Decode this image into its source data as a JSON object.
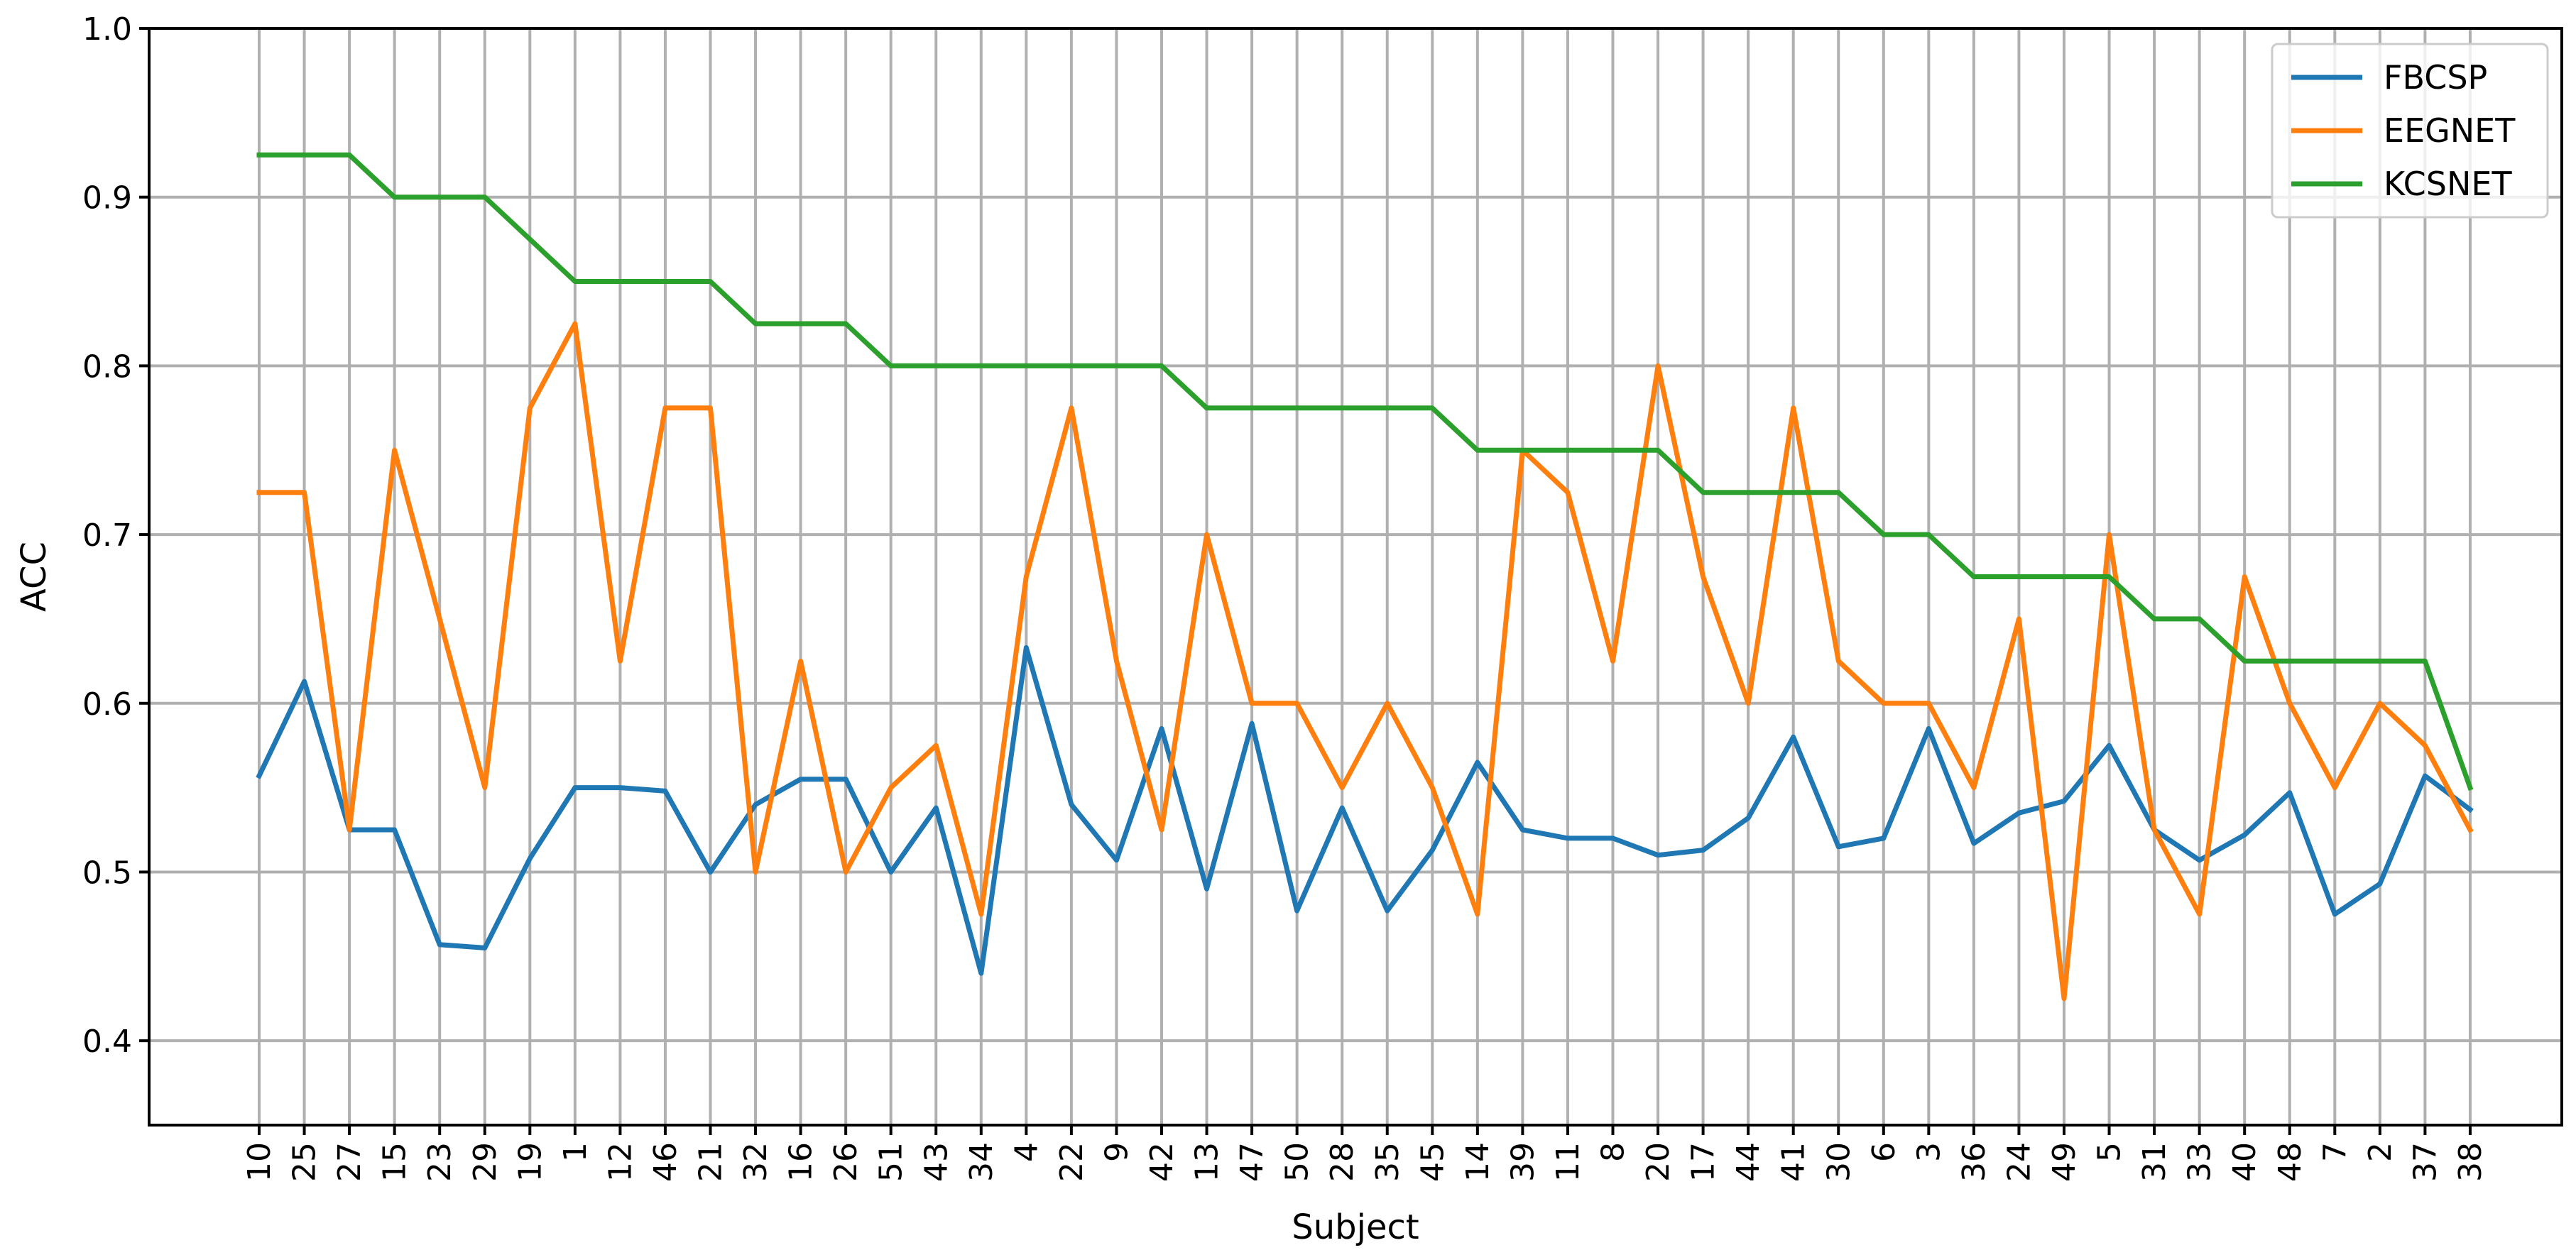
{
  "chart_data": {
    "type": "line",
    "xlabel": "Subject",
    "ylabel": "ACC",
    "ylim": [
      0.35,
      1.0
    ],
    "yticks": [
      "0.4",
      "0.5",
      "0.6",
      "0.7",
      "0.8",
      "0.9",
      "1.0"
    ],
    "grid": true,
    "legend_position": "top-right",
    "categories": [
      "10",
      "25",
      "27",
      "15",
      "23",
      "29",
      "19",
      "1",
      "12",
      "46",
      "21",
      "32",
      "16",
      "26",
      "51",
      "43",
      "34",
      "4",
      "22",
      "9",
      "42",
      "13",
      "47",
      "50",
      "28",
      "35",
      "45",
      "14",
      "39",
      "11",
      "8",
      "20",
      "17",
      "44",
      "41",
      "30",
      "6",
      "3",
      "36",
      "24",
      "49",
      "5",
      "31",
      "33",
      "40",
      "48",
      "7",
      "2",
      "37",
      "38"
    ],
    "series": [
      {
        "name": "FBCSP",
        "color": "#1f77b4",
        "values": [
          0.557,
          0.613,
          0.525,
          0.525,
          0.457,
          0.455,
          0.508,
          0.55,
          0.55,
          0.548,
          0.5,
          0.54,
          0.555,
          0.555,
          0.5,
          0.538,
          0.44,
          0.633,
          0.54,
          0.507,
          0.585,
          0.49,
          0.588,
          0.477,
          0.538,
          0.477,
          0.513,
          0.565,
          0.525,
          0.52,
          0.52,
          0.51,
          0.513,
          0.532,
          0.58,
          0.515,
          0.52,
          0.585,
          0.517,
          0.535,
          0.542,
          0.575,
          0.525,
          0.507,
          0.522,
          0.547,
          0.475,
          0.493,
          0.557,
          0.537
        ]
      },
      {
        "name": "EEGNET",
        "color": "#ff7f0e",
        "values": [
          0.725,
          0.725,
          0.525,
          0.75,
          0.65,
          0.55,
          0.775,
          0.825,
          0.625,
          0.775,
          0.775,
          0.5,
          0.625,
          0.5,
          0.55,
          0.575,
          0.475,
          0.675,
          0.775,
          0.625,
          0.525,
          0.7,
          0.6,
          0.6,
          0.55,
          0.6,
          0.55,
          0.475,
          0.75,
          0.725,
          0.625,
          0.8,
          0.675,
          0.6,
          0.775,
          0.625,
          0.6,
          0.6,
          0.55,
          0.65,
          0.425,
          0.7,
          0.525,
          0.475,
          0.675,
          0.6,
          0.55,
          0.6,
          0.575,
          0.525
        ]
      },
      {
        "name": "KCSNET",
        "color": "#2ca02c",
        "values": [
          0.925,
          0.925,
          0.925,
          0.9,
          0.9,
          0.9,
          0.875,
          0.85,
          0.85,
          0.85,
          0.85,
          0.825,
          0.825,
          0.825,
          0.8,
          0.8,
          0.8,
          0.8,
          0.8,
          0.8,
          0.8,
          0.775,
          0.775,
          0.775,
          0.775,
          0.775,
          0.775,
          0.75,
          0.75,
          0.75,
          0.75,
          0.75,
          0.725,
          0.725,
          0.725,
          0.725,
          0.7,
          0.7,
          0.675,
          0.675,
          0.675,
          0.675,
          0.65,
          0.65,
          0.625,
          0.625,
          0.625,
          0.625,
          0.625,
          0.55
        ]
      }
    ]
  }
}
